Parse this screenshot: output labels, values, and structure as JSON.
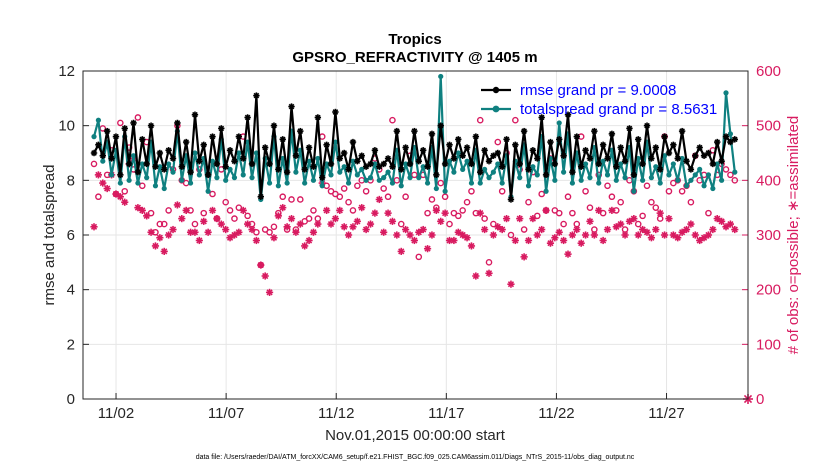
{
  "chart_data": {
    "type": "line",
    "title": "Tropics",
    "subtitle": "GPSRO_REFRACTIVITY @ 1405 m",
    "xlabel": "Nov.01,2015 00:00:00 start",
    "ylabel_left": "rmse and totalspread",
    "ylabel_right": "# of obs: o=possible; ∗=assimilated",
    "footnote": "data file: /Users/raeder/DAI/ATM_forcXX/CAM6_setup/f.e21.FHIST_BGC.f09_025.CAM6assim.011/Diags_NTrS_2015-11/obs_diag_output.nc",
    "xlim": [
      0.5,
      30.7
    ],
    "ylim_left": [
      0,
      12
    ],
    "ylim_right": [
      0,
      600
    ],
    "x_ticks": [
      2,
      7,
      12,
      17,
      22,
      27
    ],
    "x_tick_labels": [
      "11/02",
      "11/07",
      "11/12",
      "11/17",
      "11/22",
      "11/27"
    ],
    "y_ticks_left": [
      "0",
      "2",
      "4",
      "6",
      "8",
      "10",
      "12"
    ],
    "y_ticks_right": [
      "0",
      "100",
      "200",
      "300",
      "400",
      "500",
      "600"
    ],
    "colors": {
      "rmse": "#000000",
      "spread": "#0f8080",
      "obs": "#d81b60",
      "legend_text": "#0000ff"
    },
    "series": [
      {
        "name": "rmse grand pr = 9.0008",
        "axis": "left",
        "marker": "asterisk",
        "values": [
          9.0,
          9.3,
          8.9,
          9.8,
          8.8,
          9.6,
          8.2,
          9.9,
          8.6,
          10.1,
          8.3,
          9.5,
          8.6,
          10.0,
          8.5,
          9.0,
          8.4,
          9.1,
          8.8,
          10.1,
          8.5,
          9.4,
          8.3,
          10.4,
          8.7,
          9.3,
          8.2,
          9.6,
          8.6,
          9.9,
          8.5,
          9.1,
          8.7,
          9.6,
          8.8,
          10.3,
          8.6,
          11.1,
          7.4,
          9.2,
          8.6,
          10.0,
          8.4,
          9.5,
          8.3,
          10.7,
          8.9,
          9.8,
          8.4,
          9.2,
          8.5,
          10.3,
          8.1,
          9.3,
          8.6,
          10.5,
          8.8,
          9.0,
          8.4,
          9.4,
          8.7,
          8.9,
          8.5,
          8.6,
          9.1,
          8.5,
          8.6,
          8.8,
          8.5,
          9.8,
          8.4,
          9.2,
          8.6,
          9.8,
          8.7,
          9.1,
          8.5,
          9.7,
          8.2,
          10.0,
          8.6,
          9.3,
          8.8,
          9.5,
          8.9,
          9.2,
          8.6,
          9.6,
          8.3,
          9.1,
          8.7,
          8.9,
          9.0,
          8.5,
          9.5,
          7.3,
          9.3,
          8.6,
          9.8,
          8.4,
          9.1,
          8.8,
          10.3,
          8.2,
          9.4,
          8.6,
          9.5,
          8.9,
          10.4,
          8.3,
          9.6,
          8.5,
          9.1,
          8.8,
          9.8,
          8.6,
          9.3,
          8.8,
          9.7,
          8.5,
          9.2,
          8.7,
          9.9,
          8.2,
          9.5,
          8.6,
          10.0,
          8.8,
          9.2,
          8.4,
          9.6,
          9.0,
          9.3,
          8.8,
          9.8,
          8.7,
          8.4,
          8.9,
          9.2,
          8.9,
          9.0,
          8.6,
          9.4,
          8.7,
          9.6,
          9.4,
          9.5
        ]
      },
      {
        "name": "totalspread grand pr = 8.5631",
        "axis": "left",
        "marker": "dot",
        "values": [
          9.6,
          10.2,
          8.7,
          9.4,
          8.2,
          9.1,
          7.9,
          9.6,
          8.0,
          8.9,
          7.9,
          8.6,
          8.1,
          9.4,
          7.8,
          8.5,
          7.7,
          8.6,
          8.3,
          9.8,
          8.0,
          8.9,
          7.9,
          9.0,
          8.2,
          8.8,
          7.6,
          8.7,
          8.1,
          9.5,
          8.0,
          8.4,
          8.1,
          9.0,
          8.2,
          9.4,
          8.1,
          9.0,
          7.3,
          8.8,
          7.9,
          9.6,
          7.8,
          8.8,
          7.9,
          9.8,
          8.3,
          9.1,
          7.9,
          8.7,
          8.0,
          8.8,
          7.8,
          8.6,
          8.2,
          9.4,
          8.3,
          8.5,
          7.9,
          8.7,
          8.2,
          8.4,
          8.0,
          8.1,
          8.6,
          8.0,
          8.1,
          8.3,
          7.9,
          9.1,
          7.8,
          8.6,
          8.1,
          9.2,
          8.1,
          8.5,
          7.9,
          9.2,
          7.7,
          11.8,
          7.6,
          8.7,
          8.3,
          9.0,
          8.4,
          8.7,
          7.9,
          9.1,
          7.9,
          8.4,
          8.1,
          8.3,
          8.6,
          7.9,
          8.9,
          7.4,
          8.7,
          8.1,
          9.3,
          7.8,
          8.5,
          8.2,
          9.6,
          7.6,
          8.8,
          8.0,
          10.1,
          8.3,
          9.7,
          7.9,
          9.0,
          8.0,
          8.6,
          8.1,
          9.2,
          7.9,
          8.7,
          8.2,
          9.1,
          8.0,
          8.6,
          8.1,
          9.2,
          7.6,
          8.8,
          8.0,
          9.4,
          8.1,
          8.5,
          7.9,
          8.9,
          8.2,
          8.6,
          8.0,
          8.8,
          7.8,
          8.0,
          8.2,
          8.4,
          7.8,
          8.2,
          7.7,
          8.6,
          8.0,
          11.2,
          9.7,
          8.3
        ]
      },
      {
        "name": "possible",
        "axis": "right",
        "marker": "circle",
        "values": [
          430,
          370,
          495,
          410,
          455,
          375,
          505,
          380,
          460,
          420,
          515,
          390,
          470,
          340,
          305,
          320,
          320,
          345,
          420,
          500,
          400,
          395,
          345,
          320,
          420,
          340,
          410,
          375,
          330,
          420,
          360,
          345,
          330,
          350,
          480,
          335,
          320,
          305,
          245,
          310,
          305,
          315,
          340,
          370,
          310,
          365,
          310,
          365,
          325,
          330,
          345,
          330,
          480,
          390,
          380,
          375,
          370,
          385,
          360,
          345,
          390,
          400,
          380,
          400,
          440,
          420,
          385,
          370,
          510,
          400,
          320,
          370,
          445,
          410,
          260,
          410,
          340,
          365,
          350,
          395,
          370,
          320,
          340,
          335,
          345,
          360,
          380,
          340,
          510,
          330,
          250,
          320,
          470,
          380,
          450,
          300,
          510,
          420,
          310,
          360,
          415,
          335,
          375,
          345,
          440,
          345,
          340,
          320,
          370,
          340,
          320,
          480,
          380,
          350,
          310,
          410,
          340,
          390,
          370,
          345,
          360,
          310,
          400,
          380,
          320,
          335,
          390,
          360,
          350,
          330,
          480,
          380,
          395,
          400,
          380,
          390,
          360,
          445,
          400,
          410,
          340,
          455,
          410,
          430,
          420,
          410,
          400
        ]
      },
      {
        "name": "assimilated",
        "axis": "right",
        "marker": "asterisk",
        "values": [
          315,
          410,
          395,
          385,
          410,
          375,
          370,
          360,
          430,
          440,
          350,
          345,
          335,
          305,
          280,
          295,
          270,
          300,
          310,
          355,
          330,
          345,
          305,
          305,
          290,
          325,
          305,
          345,
          330,
          320,
          310,
          295,
          300,
          305,
          345,
          320,
          310,
          290,
          245,
          225,
          195,
          295,
          335,
          350,
          315,
          330,
          305,
          320,
          280,
          290,
          305,
          320,
          395,
          345,
          320,
          330,
          345,
          315,
          300,
          315,
          325,
          350,
          310,
          320,
          340,
          365,
          305,
          340,
          325,
          300,
          270,
          310,
          300,
          290,
          305,
          310,
          275,
          300,
          345,
          325,
          340,
          290,
          290,
          305,
          300,
          295,
          280,
          225,
          340,
          310,
          230,
          300,
          315,
          310,
          330,
          210,
          290,
          330,
          260,
          290,
          330,
          300,
          310,
          345,
          285,
          295,
          305,
          290,
          265,
          300,
          310,
          285,
          300,
          325,
          300,
          345,
          290,
          310,
          345,
          315,
          320,
          300,
          325,
          330,
          300,
          310,
          305,
          295,
          310,
          340,
          300,
          330,
          300,
          295,
          305,
          310,
          320,
          300,
          290,
          295,
          300,
          310,
          330,
          325,
          315,
          320,
          310
        ]
      }
    ]
  }
}
